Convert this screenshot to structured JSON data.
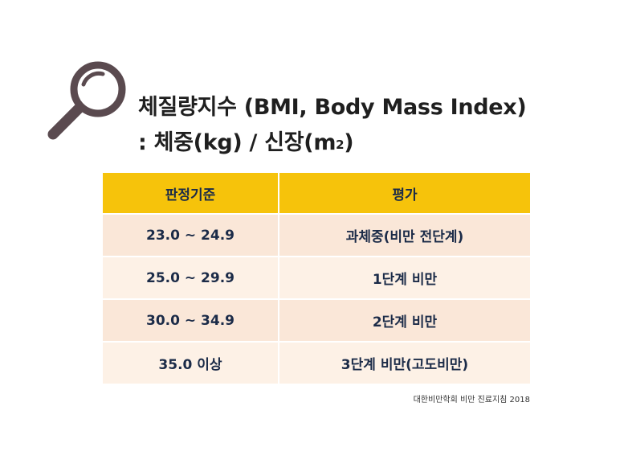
{
  "title": {
    "line1": "체질량지수 (BMI, Body Mass Index)",
    "line2_prefix": ": 체중(kg) / 신장(m",
    "line2_sup": "2",
    "line2_suffix": ")"
  },
  "table": {
    "headers": [
      "판정기준",
      "평가"
    ],
    "rows": [
      {
        "criteria": "23.0 ~ 24.9",
        "evaluation": "과체중(비만 전단계)"
      },
      {
        "criteria": "25.0 ~ 29.9",
        "evaluation": "1단계 비만"
      },
      {
        "criteria": "30.0 ~ 34.9",
        "evaluation": "2단계 비만"
      },
      {
        "criteria": "35.0 이상",
        "evaluation": "3단계 비만(고도비만)"
      }
    ]
  },
  "source": "대한비만학회 비만 진료지침 2018",
  "colors": {
    "header": "#f6c30b",
    "row_odd": "#fae7d8",
    "row_even": "#fdf1e6",
    "icon": "#5a4a4f"
  },
  "icon": "magnifier-icon"
}
